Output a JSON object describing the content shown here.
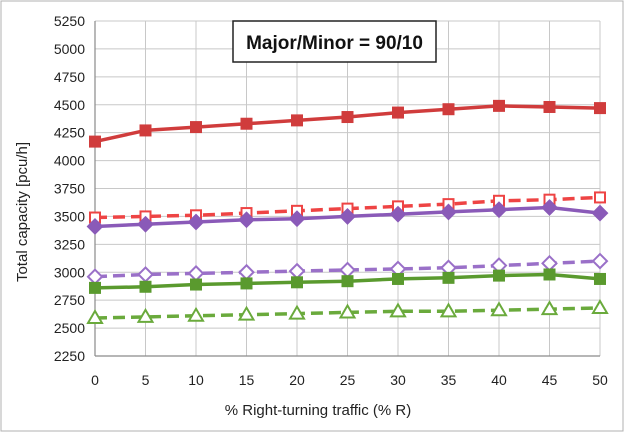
{
  "chart_data": {
    "type": "line",
    "title": "Major/Minor = 90/10",
    "xlabel": "% Right-turning traffic (% R)",
    "ylabel": "Total capacity [pcu/h]",
    "x": [
      0,
      5,
      10,
      15,
      20,
      25,
      30,
      35,
      40,
      45,
      50
    ],
    "xlim": [
      0,
      50
    ],
    "ylim": [
      2250,
      5250
    ],
    "yticks": [
      2250,
      2500,
      2750,
      3000,
      3250,
      3500,
      3750,
      4000,
      4250,
      4500,
      4750,
      5000,
      5250
    ],
    "grid": true,
    "legend": "none",
    "series": [
      {
        "color": "#d03c3c",
        "dash": false,
        "marker": "square",
        "values": [
          4170,
          4270,
          4300,
          4330,
          4360,
          4390,
          4430,
          4460,
          4490,
          4480,
          4470
        ]
      },
      {
        "color": "#ee4444",
        "dash": true,
        "marker": "square",
        "values": [
          3490,
          3500,
          3510,
          3530,
          3550,
          3570,
          3590,
          3610,
          3640,
          3650,
          3670
        ]
      },
      {
        "color": "#8a5ab8",
        "dash": false,
        "marker": "diamond",
        "values": [
          3410,
          3430,
          3450,
          3470,
          3480,
          3500,
          3520,
          3540,
          3560,
          3580,
          3530
        ]
      },
      {
        "color": "#9a70c8",
        "dash": true,
        "marker": "diamond",
        "values": [
          2960,
          2980,
          2990,
          3000,
          3010,
          3020,
          3030,
          3040,
          3060,
          3080,
          3100
        ]
      },
      {
        "color": "#5a9a2e",
        "dash": false,
        "marker": "square",
        "values": [
          2860,
          2870,
          2890,
          2900,
          2910,
          2920,
          2940,
          2950,
          2970,
          2980,
          2940
        ]
      },
      {
        "color": "#6aaa3c",
        "dash": true,
        "marker": "triangle",
        "values": [
          2590,
          2600,
          2610,
          2620,
          2630,
          2640,
          2650,
          2650,
          2660,
          2670,
          2680
        ]
      }
    ]
  }
}
